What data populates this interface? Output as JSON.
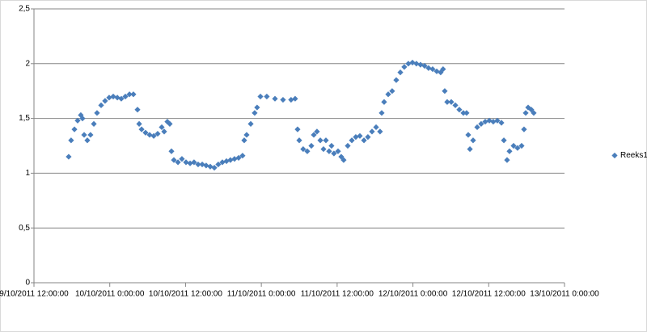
{
  "chart_data": {
    "type": "scatter",
    "xlim": [
      40825.5,
      40829
    ],
    "xticks": [
      {
        "value": 40825.5,
        "label": "9/10/2011 12:00:00"
      },
      {
        "value": 40826,
        "label": "10/10/2011 0:00:00"
      },
      {
        "value": 40826.5,
        "label": "10/10/2011 12:00:00"
      },
      {
        "value": 40827,
        "label": "11/10/2011 0:00:00"
      },
      {
        "value": 40827.5,
        "label": "11/10/2011 12:00:00"
      },
      {
        "value": 40828,
        "label": "12/10/2011 0:00:00"
      },
      {
        "value": 40828.5,
        "label": "12/10/2011 12:00:00"
      },
      {
        "value": 40829,
        "label": "13/10/2011 0:00:00"
      }
    ],
    "ylim": [
      0,
      2.5
    ],
    "yticks": [
      0,
      {
        "value": 0.5,
        "label": "0,5"
      },
      1,
      {
        "value": 1.5,
        "label": "1,5"
      },
      2,
      {
        "value": 2.5,
        "label": "2,5"
      }
    ],
    "grid": true,
    "legend": "right",
    "series": [
      {
        "name": "Reeks1",
        "color": "#4a7ebb",
        "x": [
          40825.729,
          40825.745,
          40825.767,
          40825.788,
          40825.809,
          40825.82,
          40825.831,
          40825.852,
          40825.873,
          40825.895,
          40825.916,
          40825.943,
          40825.969,
          40825.996,
          40826.023,
          40826.05,
          40826.076,
          40826.103,
          40826.13,
          40826.156,
          40826.183,
          40826.194,
          40826.21,
          40826.236,
          40826.263,
          40826.29,
          40826.316,
          40826.343,
          40826.359,
          40826.38,
          40826.396,
          40826.407,
          40826.423,
          40826.45,
          40826.476,
          40826.503,
          40826.53,
          40826.556,
          40826.583,
          40826.61,
          40826.636,
          40826.663,
          40826.69,
          40826.716,
          40826.743,
          40826.77,
          40826.796,
          40826.823,
          40826.85,
          40826.876,
          40826.887,
          40826.903,
          40826.93,
          40826.956,
          40826.972,
          40826.994,
          40827.036,
          40827.09,
          40827.143,
          40827.196,
          40827.223,
          40827.239,
          40827.25,
          40827.276,
          40827.303,
          40827.33,
          40827.346,
          40827.367,
          40827.389,
          40827.41,
          40827.426,
          40827.447,
          40827.463,
          40827.479,
          40827.506,
          40827.527,
          40827.543,
          40827.57,
          40827.597,
          40827.623,
          40827.65,
          40827.677,
          40827.703,
          40827.73,
          40827.757,
          40827.783,
          40827.794,
          40827.81,
          40827.837,
          40827.863,
          40827.89,
          40827.917,
          40827.943,
          40827.97,
          40827.997,
          40828.023,
          40828.05,
          40828.077,
          40828.103,
          40828.13,
          40828.157,
          40828.183,
          40828.199,
          40828.21,
          40828.226,
          40828.253,
          40828.28,
          40828.306,
          40828.333,
          40828.354,
          40828.365,
          40828.376,
          40828.397,
          40828.424,
          40828.45,
          40828.477,
          40828.504,
          40828.53,
          40828.557,
          40828.584,
          40828.6,
          40828.621,
          40828.637,
          40828.664,
          40828.69,
          40828.717,
          40828.733,
          40828.744,
          40828.76,
          40828.781,
          40828.797
        ],
        "values": [
          1.15,
          1.3,
          1.4,
          1.48,
          1.53,
          1.5,
          1.35,
          1.3,
          1.35,
          1.45,
          1.55,
          1.62,
          1.66,
          1.69,
          1.7,
          1.69,
          1.68,
          1.7,
          1.72,
          1.72,
          1.58,
          1.45,
          1.4,
          1.37,
          1.35,
          1.34,
          1.36,
          1.42,
          1.38,
          1.47,
          1.45,
          1.2,
          1.12,
          1.1,
          1.13,
          1.1,
          1.09,
          1.1,
          1.08,
          1.08,
          1.07,
          1.06,
          1.05,
          1.08,
          1.1,
          1.11,
          1.12,
          1.13,
          1.14,
          1.16,
          1.3,
          1.35,
          1.45,
          1.55,
          1.6,
          1.7,
          1.7,
          1.68,
          1.67,
          1.67,
          1.68,
          1.4,
          1.3,
          1.22,
          1.2,
          1.25,
          1.35,
          1.38,
          1.3,
          1.22,
          1.3,
          1.2,
          1.25,
          1.18,
          1.2,
          1.15,
          1.12,
          1.25,
          1.3,
          1.33,
          1.34,
          1.3,
          1.33,
          1.38,
          1.42,
          1.38,
          1.55,
          1.65,
          1.72,
          1.75,
          1.85,
          1.92,
          1.97,
          2.0,
          2.01,
          2.0,
          1.99,
          1.98,
          1.96,
          1.95,
          1.93,
          1.92,
          1.95,
          1.75,
          1.65,
          1.65,
          1.62,
          1.58,
          1.55,
          1.55,
          1.35,
          1.22,
          1.3,
          1.42,
          1.45,
          1.47,
          1.48,
          1.47,
          1.48,
          1.46,
          1.3,
          1.12,
          1.2,
          1.25,
          1.23,
          1.25,
          1.4,
          1.55,
          1.6,
          1.58,
          1.55
        ]
      }
    ]
  }
}
